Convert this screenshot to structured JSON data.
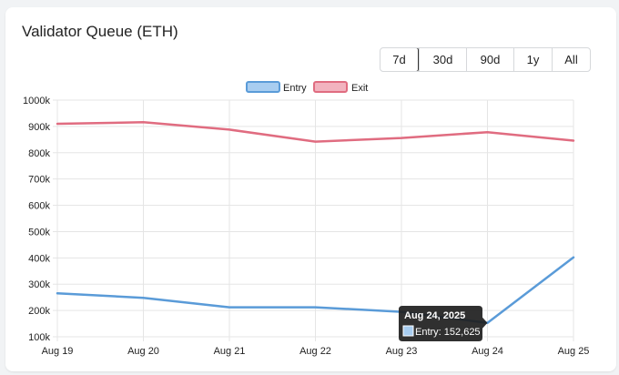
{
  "card": {
    "title": "Validator Queue (ETH)"
  },
  "range_selector": {
    "options": [
      "7d",
      "30d",
      "90d",
      "1y",
      "All"
    ],
    "active": "7d"
  },
  "chart_data": {
    "type": "line",
    "x": [
      "Aug 19",
      "Aug 20",
      "Aug 21",
      "Aug 22",
      "Aug 23",
      "Aug 24",
      "Aug 25"
    ],
    "series": [
      {
        "name": "Entry",
        "color": "#5a9bd8",
        "values": [
          265000,
          248000,
          212000,
          212000,
          195000,
          152625,
          402000
        ]
      },
      {
        "name": "Exit",
        "color": "#e06c80",
        "values": [
          910000,
          916000,
          888000,
          842000,
          856000,
          878000,
          846000
        ]
      }
    ],
    "ylim": [
      100000,
      1000000
    ],
    "yticks": [
      "100k",
      "200k",
      "300k",
      "400k",
      "500k",
      "600k",
      "700k",
      "800k",
      "900k",
      "1000k"
    ],
    "legend": "top-center",
    "grid": true,
    "tooltip": {
      "title": "Aug 24, 2025",
      "label": "Entry: 152,625"
    }
  },
  "colors": {
    "entry_fill": "#a8cdf0",
    "exit_fill": "#f2b3bf",
    "grid": "#e5e5e5",
    "tooltip_bg": "#1e1e1e"
  }
}
